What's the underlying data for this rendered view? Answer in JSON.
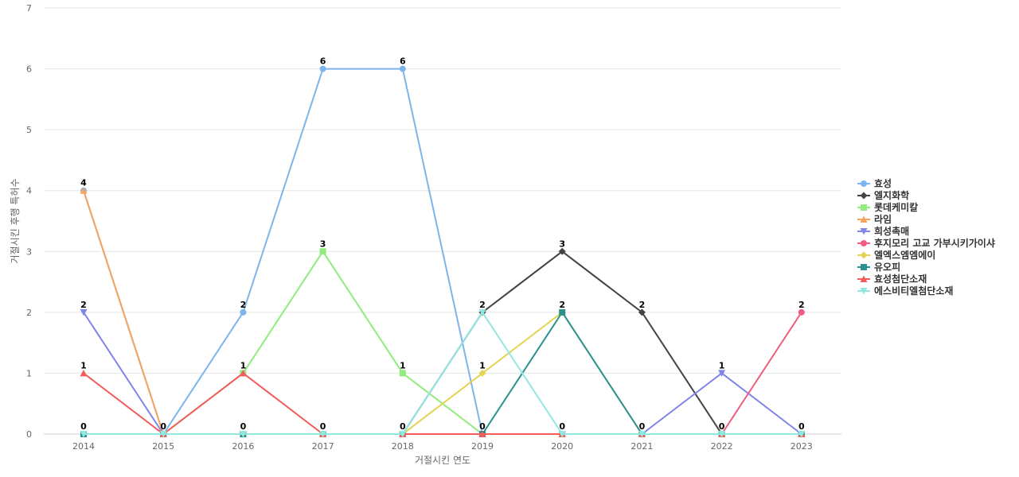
{
  "chart_data": {
    "type": "line",
    "title": "",
    "xlabel": "거절시킨 연도",
    "ylabel": "거절시킨 후행 특허수",
    "x": [
      "2014",
      "2015",
      "2016",
      "2017",
      "2018",
      "2019",
      "2020",
      "2021",
      "2022",
      "2023"
    ],
    "yticks": [
      "0",
      "1",
      "2",
      "3",
      "4",
      "5",
      "6",
      "7"
    ],
    "ylim": [
      0,
      7
    ],
    "grid": true,
    "legend_position": "right",
    "series": [
      {
        "name": "효성",
        "color": "#7cb5ec",
        "marker": "circle",
        "values": [
          4,
          0,
          2,
          6,
          6,
          0,
          0,
          0,
          0,
          0
        ]
      },
      {
        "name": "엘지화학",
        "color": "#434348",
        "marker": "diamond",
        "values": [
          0,
          0,
          0,
          0,
          0,
          2,
          3,
          2,
          0,
          0
        ]
      },
      {
        "name": "롯데케미칼",
        "color": "#90ed7d",
        "marker": "square",
        "values": [
          0,
          0,
          1,
          3,
          1,
          0,
          0,
          0,
          0,
          0
        ]
      },
      {
        "name": "라임",
        "color": "#f7a35c",
        "marker": "triangle",
        "values": [
          4,
          0,
          0,
          0,
          0,
          0,
          0,
          0,
          0,
          0
        ]
      },
      {
        "name": "희성촉매",
        "color": "#8085e9",
        "marker": "triangle-down",
        "values": [
          2,
          0,
          0,
          0,
          0,
          0,
          0,
          0,
          1,
          0
        ]
      },
      {
        "name": "후지모리 고교 가부시키가이샤",
        "color": "#f15c80",
        "marker": "circle",
        "values": [
          0,
          0,
          0,
          0,
          0,
          0,
          0,
          0,
          0,
          2
        ]
      },
      {
        "name": "엘엑스엠엠에이",
        "color": "#e4d354",
        "marker": "diamond",
        "values": [
          0,
          0,
          0,
          0,
          0,
          1,
          2,
          0,
          0,
          0
        ]
      },
      {
        "name": "유오피",
        "color": "#2b908f",
        "marker": "square",
        "values": [
          0,
          0,
          0,
          0,
          0,
          0,
          2,
          0,
          0,
          0
        ]
      },
      {
        "name": "효성첨단소재",
        "color": "#f45b5b",
        "marker": "triangle",
        "values": [
          1,
          0,
          1,
          0,
          0,
          0,
          0,
          0,
          0,
          0
        ]
      },
      {
        "name": "에스비티엘첨단소재",
        "color": "#91e8e1",
        "marker": "triangle-down",
        "values": [
          0,
          0,
          0,
          0,
          0,
          2,
          0,
          0,
          0,
          0
        ]
      }
    ],
    "data_labels": [
      {
        "x": "2014",
        "value": 4
      },
      {
        "x": "2014",
        "value": 2
      },
      {
        "x": "2014",
        "value": 1
      },
      {
        "x": "2014",
        "value": 0
      },
      {
        "x": "2015",
        "value": 0
      },
      {
        "x": "2016",
        "value": 2
      },
      {
        "x": "2016",
        "value": 1
      },
      {
        "x": "2016",
        "value": 0
      },
      {
        "x": "2017",
        "value": 6
      },
      {
        "x": "2017",
        "value": 3
      },
      {
        "x": "2017",
        "value": 0
      },
      {
        "x": "2018",
        "value": 6
      },
      {
        "x": "2018",
        "value": 1
      },
      {
        "x": "2018",
        "value": 0
      },
      {
        "x": "2019",
        "value": 2
      },
      {
        "x": "2019",
        "value": 1
      },
      {
        "x": "2019",
        "value": 0
      },
      {
        "x": "2020",
        "value": 3
      },
      {
        "x": "2020",
        "value": 2
      },
      {
        "x": "2020",
        "value": 0
      },
      {
        "x": "2021",
        "value": 2
      },
      {
        "x": "2021",
        "value": 0
      },
      {
        "x": "2022",
        "value": 1
      },
      {
        "x": "2022",
        "value": 0
      },
      {
        "x": "2023",
        "value": 2
      },
      {
        "x": "2023",
        "value": 0
      }
    ]
  }
}
